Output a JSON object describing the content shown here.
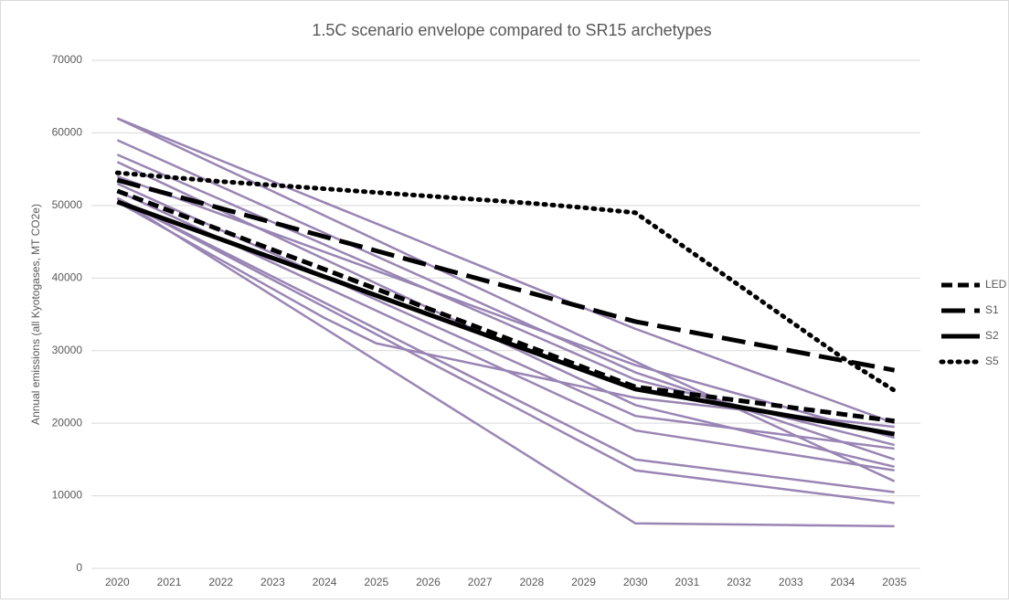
{
  "chart_data": {
    "type": "line",
    "title": "1.5C scenario envelope compared to SR15 archetypes",
    "y_label": "Annual emissions (all Kyotogases, MT CO2e)",
    "categories": [
      "2020",
      "2021",
      "2022",
      "2023",
      "2024",
      "2025",
      "2026",
      "2027",
      "2028",
      "2029",
      "2030",
      "2031",
      "2032",
      "2033",
      "2034",
      "2035"
    ],
    "ylim": [
      0,
      70000
    ],
    "yticks": [
      0,
      10000,
      20000,
      30000,
      40000,
      50000,
      60000,
      70000
    ],
    "grid": true,
    "legend": "right",
    "series": [
      {
        "color": "#9985b4",
        "values": [
          62000,
          59100,
          56200,
          53300,
          50400,
          47500,
          44600,
          41700,
          38800,
          35900,
          33000,
          30400,
          27800,
          25200,
          22600,
          20000
        ]
      },
      {
        "color": "#9985b4",
        "values": [
          62000,
          58650,
          55300,
          51950,
          48600,
          45250,
          41900,
          38550,
          35200,
          31850,
          28500,
          25200,
          21900,
          18600,
          15300,
          12000
        ]
      },
      {
        "color": "#9985b4",
        "values": [
          59000,
          55800,
          52600,
          49400,
          46200,
          43000,
          39800,
          36600,
          33400,
          30200,
          27000,
          24600,
          22200,
          19800,
          17400,
          15000
        ]
      },
      {
        "color": "#9985b4",
        "values": [
          57000,
          53900,
          50800,
          47700,
          44600,
          41500,
          38400,
          35300,
          32200,
          29100,
          26000,
          24200,
          22400,
          20600,
          18800,
          17000
        ]
      },
      {
        "color": "#9985b4",
        "values": [
          56000,
          52650,
          49300,
          45950,
          42600,
          39250,
          35900,
          32550,
          29200,
          25850,
          22500,
          20800,
          19100,
          17400,
          15700,
          14000
        ]
      },
      {
        "color": "#9985b4",
        "values": [
          54000,
          51400,
          48800,
          46200,
          43600,
          41000,
          38400,
          35800,
          33200,
          30600,
          28000,
          26000,
          24000,
          22000,
          20000,
          18000
        ]
      },
      {
        "color": "#9985b4",
        "values": [
          53000,
          49800,
          46600,
          43400,
          40200,
          37000,
          33800,
          30600,
          27400,
          24200,
          21000,
          20100,
          19200,
          18300,
          17400,
          16500
        ]
      },
      {
        "color": "#9985b4",
        "values": [
          52000,
          48700,
          45400,
          42100,
          38800,
          35500,
          32200,
          28900,
          25600,
          22300,
          19000,
          17900,
          16800,
          15700,
          14600,
          13500
        ]
      },
      {
        "color": "#9985b4",
        "values": [
          51000,
          47400,
          43800,
          40200,
          36600,
          33000,
          29400,
          25800,
          22200,
          18600,
          15000,
          14100,
          13200,
          12300,
          11400,
          10500
        ]
      },
      {
        "color": "#9985b4",
        "values": [
          51000,
          47250,
          43500,
          39750,
          36000,
          32250,
          28500,
          24750,
          21000,
          17250,
          13500,
          12600,
          11700,
          10800,
          9900,
          9000
        ]
      },
      {
        "color": "#9985b4",
        "values": [
          51000,
          46520,
          42040,
          37560,
          33080,
          28600,
          24120,
          19640,
          15160,
          10680,
          6200,
          6120,
          6040,
          5960,
          5880,
          5800
        ]
      },
      {
        "color": "#9985b4",
        "values": [
          50500,
          46500,
          42500,
          38500,
          34500,
          31000,
          29500,
          28000,
          26500,
          25000,
          23500,
          22700,
          21900,
          21100,
          20300,
          19500
        ]
      },
      {
        "name": "LED",
        "color": "#000000",
        "dash": "dash",
        "values": [
          52000,
          49300,
          46600,
          43900,
          41200,
          38500,
          35800,
          33100,
          30400,
          27700,
          25000,
          24060,
          23120,
          22180,
          21240,
          20300
        ]
      },
      {
        "name": "S1",
        "color": "#000000",
        "dash": "longdash",
        "values": [
          53500,
          51550,
          49600,
          47650,
          45700,
          43750,
          41800,
          39850,
          37900,
          35950,
          34000,
          32660,
          31320,
          29980,
          28640,
          27300
        ]
      },
      {
        "name": "S2",
        "color": "#000000",
        "dash": "solid",
        "values": [
          50500,
          47920,
          45340,
          42760,
          40180,
          37600,
          35020,
          32440,
          29860,
          27280,
          24700,
          23460,
          22220,
          20980,
          19740,
          18500
        ]
      },
      {
        "name": "S5",
        "color": "#000000",
        "dash": "dot",
        "values": [
          54500,
          53900,
          53300,
          52800,
          52300,
          51800,
          51300,
          50800,
          50300,
          49700,
          49000,
          44000,
          39000,
          34000,
          29000,
          24500
        ]
      }
    ]
  }
}
